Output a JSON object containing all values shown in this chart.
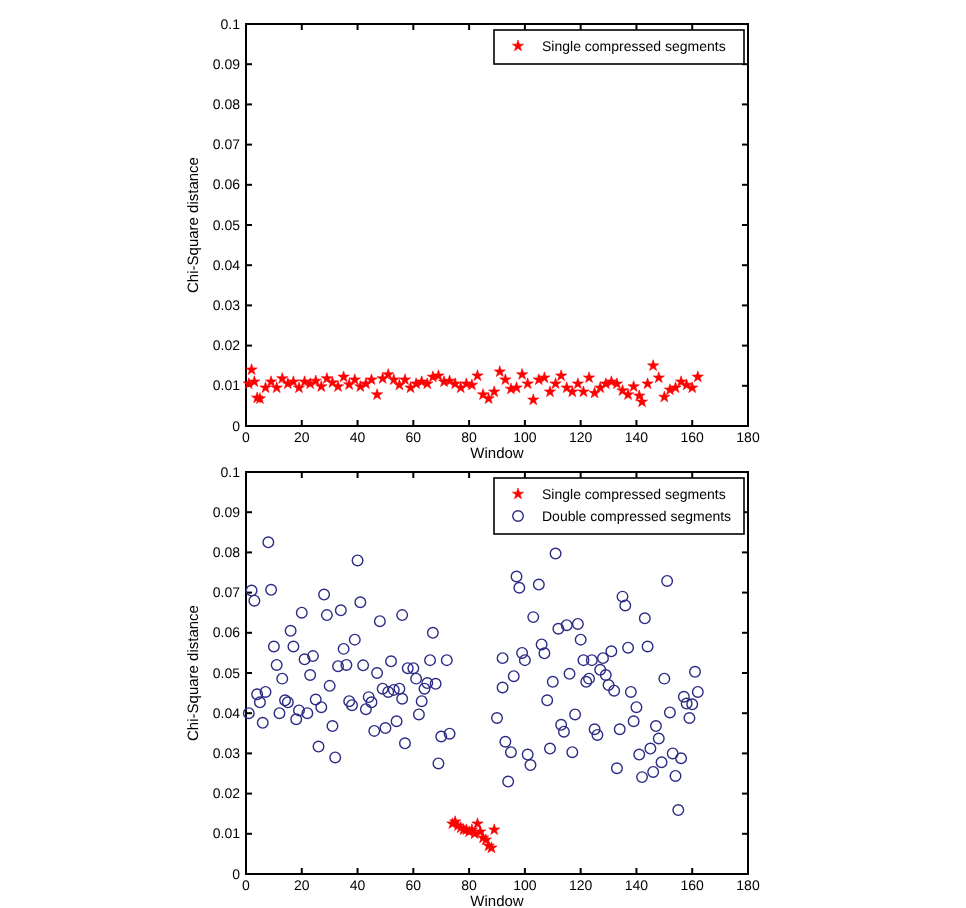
{
  "chart_data": [
    {
      "type": "scatter",
      "xlabel": "Window",
      "ylabel": "Chi-Square distance",
      "xlim": [
        0,
        180
      ],
      "ylim": [
        0,
        0.1
      ],
      "xticks": [
        0,
        20,
        40,
        60,
        80,
        100,
        120,
        140,
        160,
        180
      ],
      "yticks": [
        0,
        0.01,
        0.02,
        0.03,
        0.04,
        0.05,
        0.06,
        0.07,
        0.08,
        0.09,
        0.1
      ],
      "grid": false,
      "legend": "top right",
      "series": [
        {
          "name": "Single compressed segments",
          "color": "#ff0000",
          "marker": "star",
          "x": [
            1,
            2,
            3,
            4,
            5,
            7,
            9,
            11,
            13,
            15,
            17,
            19,
            21,
            23,
            25,
            27,
            29,
            31,
            33,
            35,
            37,
            39,
            41,
            43,
            45,
            47,
            49,
            51,
            53,
            55,
            57,
            59,
            61,
            63,
            65,
            67,
            69,
            71,
            73,
            75,
            77,
            79,
            81,
            83,
            85,
            87,
            89,
            91,
            93,
            95,
            97,
            99,
            101,
            103,
            105,
            107,
            109,
            111,
            113,
            115,
            117,
            119,
            121,
            123,
            125,
            127,
            129,
            131,
            133,
            135,
            137,
            139,
            141,
            142,
            144,
            146,
            148,
            150,
            152,
            154,
            156,
            158,
            160,
            162
          ],
          "values": [
            0.0105,
            0.014,
            0.011,
            0.007,
            0.0068,
            0.0095,
            0.011,
            0.0095,
            0.0118,
            0.0105,
            0.011,
            0.0095,
            0.011,
            0.0105,
            0.0112,
            0.0098,
            0.0118,
            0.0108,
            0.0098,
            0.0122,
            0.0103,
            0.0115,
            0.0098,
            0.0105,
            0.0115,
            0.0078,
            0.0118,
            0.0128,
            0.0115,
            0.0102,
            0.0115,
            0.0095,
            0.0105,
            0.011,
            0.0105,
            0.0122,
            0.0125,
            0.011,
            0.0112,
            0.0105,
            0.0095,
            0.0105,
            0.0102,
            0.0125,
            0.0078,
            0.0068,
            0.0085,
            0.0135,
            0.0115,
            0.0092,
            0.0095,
            0.0128,
            0.0105,
            0.0065,
            0.0115,
            0.012,
            0.0085,
            0.0105,
            0.0125,
            0.0095,
            0.0085,
            0.0105,
            0.0085,
            0.012,
            0.0082,
            0.0095,
            0.0105,
            0.011,
            0.0105,
            0.0088,
            0.0078,
            0.0098,
            0.0075,
            0.006,
            0.0105,
            0.015,
            0.012,
            0.0072,
            0.009,
            0.0095,
            0.011,
            0.0102,
            0.0095,
            0.0122
          ]
        }
      ]
    },
    {
      "type": "scatter",
      "xlabel": "Window",
      "ylabel": "Chi-Square distance",
      "xlim": [
        0,
        180
      ],
      "ylim": [
        0,
        0.1
      ],
      "xticks": [
        0,
        20,
        40,
        60,
        80,
        100,
        120,
        140,
        160,
        180
      ],
      "yticks": [
        0,
        0.01,
        0.02,
        0.03,
        0.04,
        0.05,
        0.06,
        0.07,
        0.08,
        0.09,
        0.1
      ],
      "grid": false,
      "legend": "top right",
      "series": [
        {
          "name": "Single compressed segments",
          "color": "#ff0000",
          "marker": "star",
          "x": [
            74,
            75,
            76,
            77,
            78,
            79,
            80,
            81,
            82,
            83,
            84,
            85,
            86,
            87,
            88,
            89
          ],
          "values": [
            0.0125,
            0.013,
            0.012,
            0.0115,
            0.011,
            0.011,
            0.0105,
            0.011,
            0.01,
            0.0125,
            0.0105,
            0.009,
            0.0085,
            0.007,
            0.0065,
            0.011
          ]
        },
        {
          "name": "Double compressed segments",
          "color": "#2b2b85",
          "marker": "circle",
          "x": [
            1,
            2,
            3,
            4,
            5,
            6,
            7,
            8,
            9,
            10,
            11,
            13,
            12,
            14,
            15,
            16,
            17,
            18,
            19,
            20,
            21,
            22,
            23,
            24,
            25,
            26,
            27,
            28,
            29,
            30,
            31,
            32,
            33,
            34,
            35,
            36,
            37,
            38,
            39,
            40,
            41,
            42,
            43,
            44,
            45,
            46,
            47,
            48,
            49,
            50,
            51,
            52,
            53,
            54,
            55,
            56,
            56,
            57,
            58,
            60,
            61,
            62,
            63,
            64,
            65,
            66,
            67,
            68,
            69,
            70,
            72,
            73,
            90,
            92,
            92,
            93,
            94,
            95,
            96,
            97,
            98,
            99,
            100,
            101,
            102,
            103,
            105,
            106,
            107,
            108,
            109,
            110,
            111,
            112,
            113,
            114,
            115,
            116,
            117,
            118,
            119,
            120,
            121,
            122,
            123,
            124,
            125,
            126,
            127,
            128,
            129,
            130,
            131,
            132,
            133,
            134,
            135,
            136,
            137,
            138,
            139,
            140,
            141,
            142,
            143,
            144,
            145,
            146,
            147,
            148,
            149,
            150,
            151,
            152,
            153,
            154,
            155,
            156,
            157,
            158,
            159,
            160,
            161,
            162
          ],
          "values": [
            0.04,
            0.0705,
            0.068,
            0.0447,
            0.0427,
            0.0376,
            0.0453,
            0.0825,
            0.0707,
            0.0566,
            0.052,
            0.0486,
            0.04,
            0.0432,
            0.0427,
            0.0605,
            0.0566,
            0.0385,
            0.0407,
            0.065,
            0.0534,
            0.04,
            0.0495,
            0.0542,
            0.0434,
            0.0317,
            0.0415,
            0.0695,
            0.0644,
            0.0468,
            0.0368,
            0.029,
            0.0517,
            0.0656,
            0.056,
            0.052,
            0.043,
            0.042,
            0.0583,
            0.078,
            0.0676,
            0.0519,
            0.041,
            0.044,
            0.0427,
            0.0356,
            0.05,
            0.0629,
            0.0461,
            0.0363,
            0.0453,
            0.0529,
            0.0458,
            0.038,
            0.0461,
            0.0644,
            0.0436,
            0.0325,
            0.0512,
            0.0512,
            0.0486,
            0.0397,
            0.043,
            0.0461,
            0.0475,
            0.0532,
            0.06,
            0.0473,
            0.0275,
            0.0342,
            0.0532,
            0.0349,
            0.0388,
            0.0537,
            0.0464,
            0.0329,
            0.023,
            0.0303,
            0.0492,
            0.074,
            0.0712,
            0.055,
            0.0532,
            0.0297,
            0.0271,
            0.0639,
            0.072,
            0.0571,
            0.0549,
            0.0432,
            0.0312,
            0.0478,
            0.0797,
            0.061,
            0.0371,
            0.0354,
            0.0619,
            0.0498,
            0.0303,
            0.0397,
            0.0622,
            0.0583,
            0.0532,
            0.0478,
            0.0486,
            0.0532,
            0.036,
            0.0346,
            0.0508,
            0.0537,
            0.0495,
            0.047,
            0.0554,
            0.0456,
            0.0263,
            0.036,
            0.069,
            0.0668,
            0.0563,
            0.0453,
            0.038,
            0.0415,
            0.0297,
            0.0241,
            0.0636,
            0.0566,
            0.0312,
            0.0254,
            0.0368,
            0.0337,
            0.0278,
            0.0486,
            0.0729,
            0.0402,
            0.03,
            0.0244,
            0.0159,
            0.0288,
            0.0441,
            0.0424,
            0.0388,
            0.0422,
            0.0503,
            0.0453
          ]
        }
      ]
    }
  ]
}
